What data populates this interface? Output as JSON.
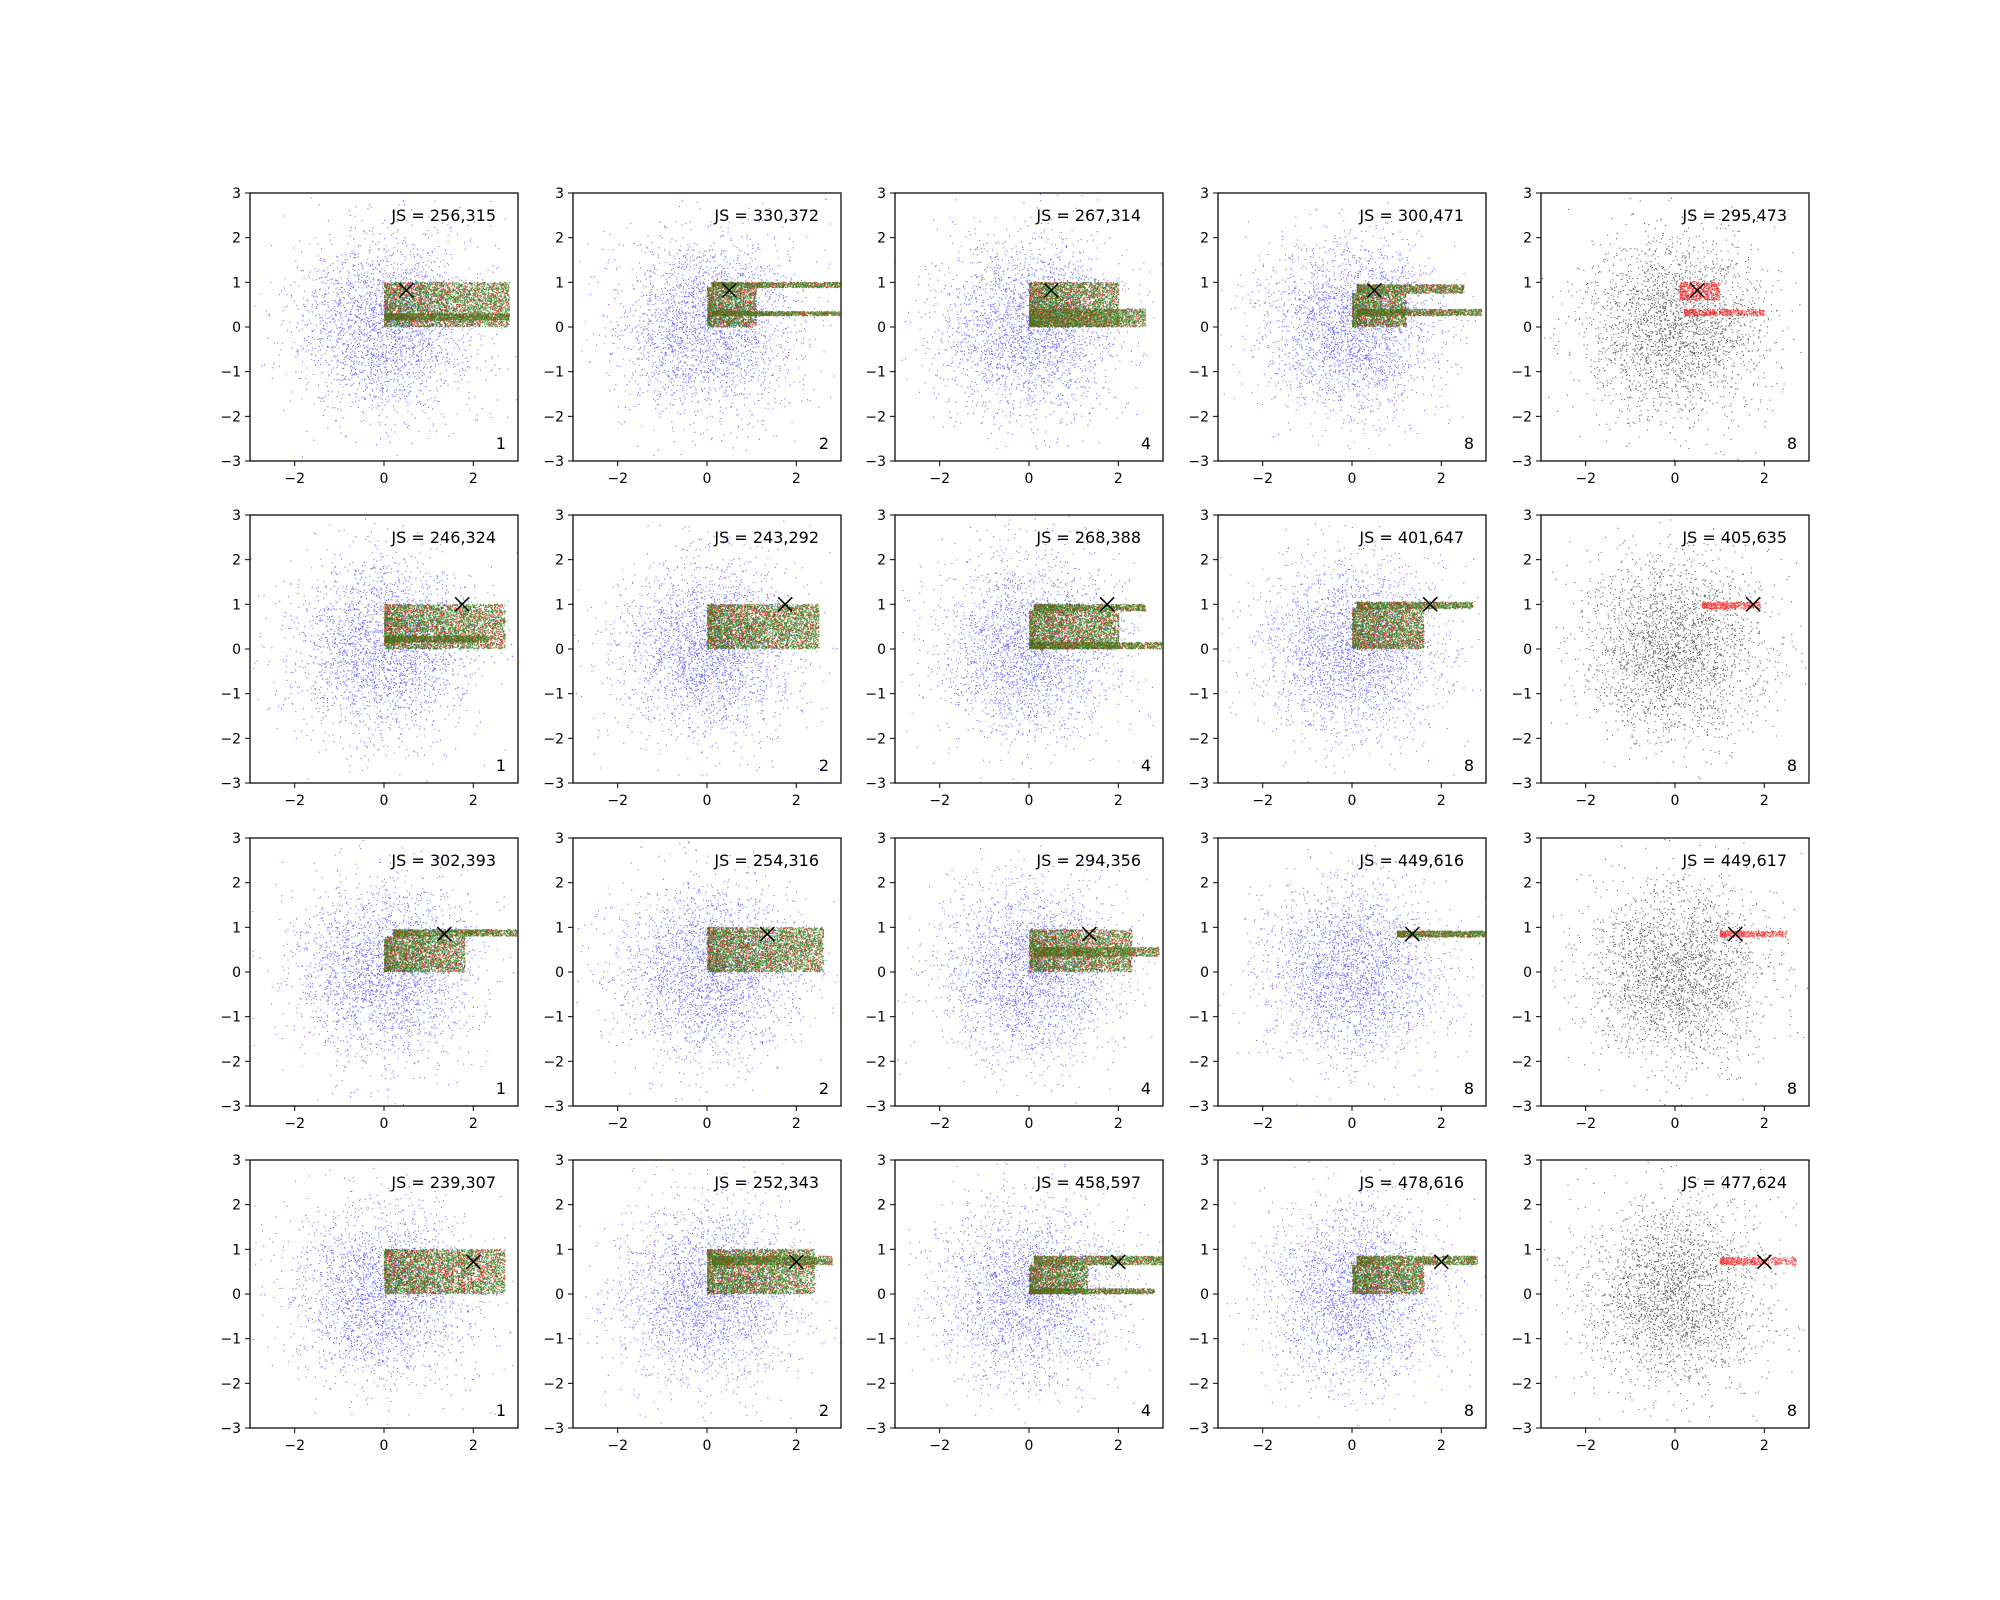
{
  "figure": {
    "grid": "4x5",
    "colors": {
      "background_points": "#0000ff",
      "background_points_last_column": "#000000",
      "red_points": "#ff0000",
      "green_points": "#008000",
      "marker": "#000000"
    }
  },
  "chart_data": [
    {
      "type": "scatter",
      "row": 0,
      "col": 0,
      "js_label": "JS = 256,315",
      "corner_label": "1",
      "marker": [
        0.5,
        0.82
      ],
      "bands": [
        {
          "y": [
            0.0,
            1.0
          ],
          "x": [
            0.0,
            2.8
          ]
        },
        {
          "y": [
            0.15,
            0.3
          ],
          "x": [
            0.0,
            2.8
          ]
        }
      ],
      "xlim": [
        -3,
        3
      ],
      "ylim": [
        -3,
        3
      ],
      "xticks": [
        "−2",
        "0",
        "2"
      ],
      "yticks": [
        "−3",
        "−2",
        "−1",
        "0",
        "1",
        "2",
        "3"
      ],
      "has_green": true,
      "grid": false
    },
    {
      "type": "scatter",
      "row": 0,
      "col": 1,
      "js_label": "JS = 330,372",
      "corner_label": "2",
      "marker": [
        0.5,
        0.82
      ],
      "bands": [
        {
          "y": [
            0.88,
            1.0
          ],
          "x": [
            0.1,
            3.0
          ]
        },
        {
          "y": [
            0.25,
            0.35
          ],
          "x": [
            0.1,
            3.0
          ]
        },
        {
          "y": [
            0.0,
            0.88
          ],
          "x": [
            0.0,
            1.1
          ]
        }
      ],
      "xlim": [
        -3,
        3
      ],
      "ylim": [
        -3,
        3
      ],
      "xticks": [
        "−2",
        "0",
        "2"
      ],
      "yticks": [
        "−3",
        "−2",
        "−1",
        "0",
        "1",
        "2",
        "3"
      ],
      "has_green": true,
      "grid": false
    },
    {
      "type": "scatter",
      "row": 0,
      "col": 2,
      "js_label": "JS = 267,314",
      "corner_label": "4",
      "marker": [
        0.5,
        0.82
      ],
      "bands": [
        {
          "y": [
            0.0,
            1.0
          ],
          "x": [
            0.0,
            2.0
          ]
        },
        {
          "y": [
            0.0,
            0.4
          ],
          "x": [
            0.0,
            2.6
          ]
        }
      ],
      "xlim": [
        -3,
        3
      ],
      "ylim": [
        -3,
        3
      ],
      "xticks": [
        "−2",
        "0",
        "2"
      ],
      "yticks": [
        "−3",
        "−2",
        "−1",
        "0",
        "1",
        "2",
        "3"
      ],
      "has_green": true,
      "grid": false
    },
    {
      "type": "scatter",
      "row": 0,
      "col": 3,
      "js_label": "JS = 300,471",
      "corner_label": "8",
      "marker": [
        0.5,
        0.82
      ],
      "bands": [
        {
          "y": [
            0.75,
            0.95
          ],
          "x": [
            0.1,
            2.5
          ]
        },
        {
          "y": [
            0.25,
            0.4
          ],
          "x": [
            0.1,
            2.9
          ]
        },
        {
          "y": [
            0.0,
            0.75
          ],
          "x": [
            0.0,
            1.2
          ]
        }
      ],
      "xlim": [
        -3,
        3
      ],
      "ylim": [
        -3,
        3
      ],
      "xticks": [
        "−2",
        "0",
        "2"
      ],
      "yticks": [
        "−3",
        "−2",
        "−1",
        "0",
        "1",
        "2",
        "3"
      ],
      "has_green": true,
      "grid": false
    },
    {
      "type": "scatter",
      "row": 0,
      "col": 4,
      "js_label": "JS = 295,473",
      "corner_label": "8",
      "marker": [
        0.5,
        0.82
      ],
      "bands": [
        {
          "y": [
            0.6,
            1.0
          ],
          "x": [
            0.1,
            1.0
          ]
        },
        {
          "y": [
            0.25,
            0.4
          ],
          "x": [
            0.2,
            2.0
          ]
        }
      ],
      "xlim": [
        -3,
        3
      ],
      "ylim": [
        -3,
        3
      ],
      "xticks": [
        "−2",
        "0",
        "2"
      ],
      "yticks": [
        "−3",
        "−2",
        "−1",
        "0",
        "1",
        "2",
        "3"
      ],
      "has_green": false,
      "grid": false
    },
    {
      "type": "scatter",
      "row": 1,
      "col": 0,
      "js_label": "JS = 246,324",
      "corner_label": "1",
      "marker": [
        1.75,
        1.0
      ],
      "bands": [
        {
          "y": [
            0.0,
            1.0
          ],
          "x": [
            0.0,
            2.7
          ]
        },
        {
          "y": [
            0.15,
            0.3
          ],
          "x": [
            0.0,
            2.3
          ]
        }
      ],
      "xlim": [
        -3,
        3
      ],
      "ylim": [
        -3,
        3
      ],
      "xticks": [
        "−2",
        "0",
        "2"
      ],
      "yticks": [
        "−3",
        "−2",
        "−1",
        "0",
        "1",
        "2",
        "3"
      ],
      "has_green": true,
      "grid": false
    },
    {
      "type": "scatter",
      "row": 1,
      "col": 1,
      "js_label": "JS = 243,292",
      "corner_label": "2",
      "marker": [
        1.75,
        1.0
      ],
      "bands": [
        {
          "y": [
            0.0,
            1.0
          ],
          "x": [
            0.0,
            2.5
          ]
        }
      ],
      "xlim": [
        -3,
        3
      ],
      "ylim": [
        -3,
        3
      ],
      "xticks": [
        "−2",
        "0",
        "2"
      ],
      "yticks": [
        "−3",
        "−2",
        "−1",
        "0",
        "1",
        "2",
        "3"
      ],
      "has_green": true,
      "grid": false
    },
    {
      "type": "scatter",
      "row": 1,
      "col": 2,
      "js_label": "JS = 268,388",
      "corner_label": "4",
      "marker": [
        1.75,
        1.0
      ],
      "bands": [
        {
          "y": [
            0.85,
            1.0
          ],
          "x": [
            0.1,
            2.6
          ]
        },
        {
          "y": [
            0.0,
            0.85
          ],
          "x": [
            0.0,
            2.0
          ]
        },
        {
          "y": [
            0.0,
            0.15
          ],
          "x": [
            0.0,
            3.0
          ]
        }
      ],
      "xlim": [
        -3,
        3
      ],
      "ylim": [
        -3,
        3
      ],
      "xticks": [
        "−2",
        "0",
        "2"
      ],
      "yticks": [
        "−3",
        "−2",
        "−1",
        "0",
        "1",
        "2",
        "3"
      ],
      "has_green": true,
      "grid": false
    },
    {
      "type": "scatter",
      "row": 1,
      "col": 3,
      "js_label": "JS = 401,647",
      "corner_label": "8",
      "marker": [
        1.75,
        1.0
      ],
      "bands": [
        {
          "y": [
            0.9,
            1.05
          ],
          "x": [
            0.1,
            2.7
          ]
        },
        {
          "y": [
            0.0,
            0.9
          ],
          "x": [
            0.0,
            1.6
          ]
        }
      ],
      "xlim": [
        -3,
        3
      ],
      "ylim": [
        -3,
        3
      ],
      "xticks": [
        "−2",
        "0",
        "2"
      ],
      "yticks": [
        "−3",
        "−2",
        "−1",
        "0",
        "1",
        "2",
        "3"
      ],
      "has_green": true,
      "grid": false
    },
    {
      "type": "scatter",
      "row": 1,
      "col": 4,
      "js_label": "JS = 405,635",
      "corner_label": "8",
      "marker": [
        1.75,
        1.0
      ],
      "bands": [
        {
          "y": [
            0.9,
            1.05
          ],
          "x": [
            0.6,
            1.9
          ]
        }
      ],
      "xlim": [
        -3,
        3
      ],
      "ylim": [
        -3,
        3
      ],
      "xticks": [
        "−2",
        "0",
        "2"
      ],
      "yticks": [
        "−3",
        "−2",
        "−1",
        "0",
        "1",
        "2",
        "3"
      ],
      "has_green": false,
      "grid": false
    },
    {
      "type": "scatter",
      "row": 2,
      "col": 0,
      "js_label": "JS = 302,393",
      "corner_label": "1",
      "marker": [
        1.35,
        0.85
      ],
      "bands": [
        {
          "y": [
            0.8,
            0.95
          ],
          "x": [
            0.2,
            3.0
          ]
        },
        {
          "y": [
            0.0,
            0.8
          ],
          "x": [
            0.0,
            1.8
          ]
        }
      ],
      "xlim": [
        -3,
        3
      ],
      "ylim": [
        -3,
        3
      ],
      "xticks": [
        "−2",
        "0",
        "2"
      ],
      "yticks": [
        "−3",
        "−2",
        "−1",
        "0",
        "1",
        "2",
        "3"
      ],
      "has_green": true,
      "grid": false
    },
    {
      "type": "scatter",
      "row": 2,
      "col": 1,
      "js_label": "JS = 254,316",
      "corner_label": "2",
      "marker": [
        1.35,
        0.85
      ],
      "bands": [
        {
          "y": [
            0.0,
            1.0
          ],
          "x": [
            0.0,
            2.6
          ]
        }
      ],
      "xlim": [
        -3,
        3
      ],
      "ylim": [
        -3,
        3
      ],
      "xticks": [
        "−2",
        "0",
        "2"
      ],
      "yticks": [
        "−3",
        "−2",
        "−1",
        "0",
        "1",
        "2",
        "3"
      ],
      "has_green": true,
      "grid": false
    },
    {
      "type": "scatter",
      "row": 2,
      "col": 2,
      "js_label": "JS = 294,356",
      "corner_label": "4",
      "marker": [
        1.35,
        0.85
      ],
      "bands": [
        {
          "y": [
            0.0,
            0.95
          ],
          "x": [
            0.0,
            2.3
          ]
        },
        {
          "y": [
            0.35,
            0.55
          ],
          "x": [
            0.1,
            2.9
          ]
        }
      ],
      "xlim": [
        -3,
        3
      ],
      "ylim": [
        -3,
        3
      ],
      "xticks": [
        "−2",
        "0",
        "2"
      ],
      "yticks": [
        "−3",
        "−2",
        "−1",
        "0",
        "1",
        "2",
        "3"
      ],
      "has_green": true,
      "grid": false
    },
    {
      "type": "scatter",
      "row": 2,
      "col": 3,
      "js_label": "JS = 449,616",
      "corner_label": "8",
      "marker": [
        1.35,
        0.85
      ],
      "bands": [
        {
          "y": [
            0.78,
            0.92
          ],
          "x": [
            1.0,
            3.0
          ]
        }
      ],
      "xlim": [
        -3,
        3
      ],
      "ylim": [
        -3,
        3
      ],
      "xticks": [
        "−2",
        "0",
        "2"
      ],
      "yticks": [
        "−3",
        "−2",
        "−1",
        "0",
        "1",
        "2",
        "3"
      ],
      "has_green": true,
      "grid": false
    },
    {
      "type": "scatter",
      "row": 2,
      "col": 4,
      "js_label": "JS = 449,617",
      "corner_label": "8",
      "marker": [
        1.35,
        0.85
      ],
      "bands": [
        {
          "y": [
            0.78,
            0.92
          ],
          "x": [
            1.0,
            2.5
          ]
        }
      ],
      "xlim": [
        -3,
        3
      ],
      "ylim": [
        -3,
        3
      ],
      "xticks": [
        "−2",
        "0",
        "2"
      ],
      "yticks": [
        "−3",
        "−2",
        "−1",
        "0",
        "1",
        "2",
        "3"
      ],
      "has_green": false,
      "grid": false
    },
    {
      "type": "scatter",
      "row": 3,
      "col": 0,
      "js_label": "JS = 239,307",
      "corner_label": "1",
      "marker": [
        2.0,
        0.72
      ],
      "bands": [
        {
          "y": [
            0.0,
            1.0
          ],
          "x": [
            0.0,
            2.7
          ]
        }
      ],
      "xlim": [
        -3,
        3
      ],
      "ylim": [
        -3,
        3
      ],
      "xticks": [
        "−2",
        "0",
        "2"
      ],
      "yticks": [
        "−3",
        "−2",
        "−1",
        "0",
        "1",
        "2",
        "3"
      ],
      "has_green": true,
      "grid": false
    },
    {
      "type": "scatter",
      "row": 3,
      "col": 1,
      "js_label": "JS = 252,343",
      "corner_label": "2",
      "marker": [
        2.0,
        0.72
      ],
      "bands": [
        {
          "y": [
            0.0,
            1.0
          ],
          "x": [
            0.0,
            2.4
          ]
        },
        {
          "y": [
            0.65,
            0.85
          ],
          "x": [
            0.1,
            2.8
          ]
        }
      ],
      "xlim": [
        -3,
        3
      ],
      "ylim": [
        -3,
        3
      ],
      "xticks": [
        "−2",
        "0",
        "2"
      ],
      "yticks": [
        "−3",
        "−2",
        "−1",
        "0",
        "1",
        "2",
        "3"
      ],
      "has_green": true,
      "grid": false
    },
    {
      "type": "scatter",
      "row": 3,
      "col": 2,
      "js_label": "JS = 458,597",
      "corner_label": "4",
      "marker": [
        2.0,
        0.72
      ],
      "bands": [
        {
          "y": [
            0.65,
            0.85
          ],
          "x": [
            0.1,
            3.0
          ]
        },
        {
          "y": [
            0.0,
            0.65
          ],
          "x": [
            0.0,
            1.3
          ]
        },
        {
          "y": [
            0.0,
            0.12
          ],
          "x": [
            0.0,
            2.8
          ]
        }
      ],
      "xlim": [
        -3,
        3
      ],
      "ylim": [
        -3,
        3
      ],
      "xticks": [
        "−2",
        "0",
        "2"
      ],
      "yticks": [
        "−3",
        "−2",
        "−1",
        "0",
        "1",
        "2",
        "3"
      ],
      "has_green": true,
      "grid": false
    },
    {
      "type": "scatter",
      "row": 3,
      "col": 3,
      "js_label": "JS = 478,616",
      "corner_label": "8",
      "marker": [
        2.0,
        0.72
      ],
      "bands": [
        {
          "y": [
            0.65,
            0.85
          ],
          "x": [
            0.1,
            2.8
          ]
        },
        {
          "y": [
            0.0,
            0.65
          ],
          "x": [
            0.0,
            1.6
          ]
        }
      ],
      "xlim": [
        -3,
        3
      ],
      "ylim": [
        -3,
        3
      ],
      "xticks": [
        "−2",
        "0",
        "2"
      ],
      "yticks": [
        "−3",
        "−2",
        "−1",
        "0",
        "1",
        "2",
        "3"
      ],
      "has_green": true,
      "grid": false
    },
    {
      "type": "scatter",
      "row": 3,
      "col": 4,
      "js_label": "JS = 477,624",
      "corner_label": "8",
      "marker": [
        2.0,
        0.72
      ],
      "bands": [
        {
          "y": [
            0.65,
            0.82
          ],
          "x": [
            1.0,
            2.7
          ]
        }
      ],
      "xlim": [
        -3,
        3
      ],
      "ylim": [
        -3,
        3
      ],
      "xticks": [
        "−2",
        "0",
        "2"
      ],
      "yticks": [
        "−3",
        "−2",
        "−1",
        "0",
        "1",
        "2",
        "3"
      ],
      "has_green": false,
      "grid": false
    }
  ]
}
